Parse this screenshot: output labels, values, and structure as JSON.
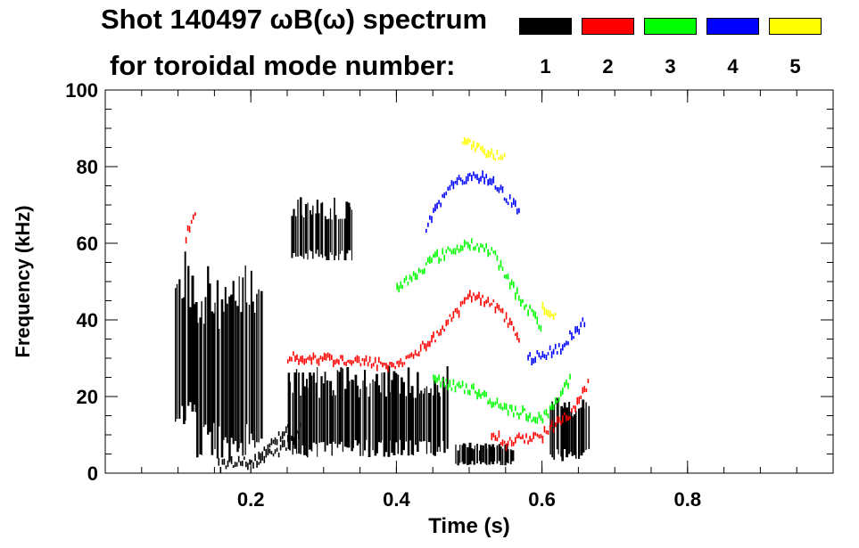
{
  "chart_data": {
    "type": "heatmap",
    "title": "Shot 140497 ωB(ω) spectrum",
    "subtitle": "for toroidal mode number:",
    "xlabel": "Time (s)",
    "ylabel": "Frequency (kHz)",
    "xlim": [
      0.0,
      1.0
    ],
    "ylim": [
      0,
      100
    ],
    "x_ticks": [
      "0.2",
      "0.4",
      "0.6",
      "0.8"
    ],
    "y_ticks": [
      "0",
      "20",
      "40",
      "60",
      "80",
      "100"
    ],
    "legend_position": "top-right",
    "legend": [
      {
        "n": "1",
        "color": "#000000"
      },
      {
        "n": "2",
        "color": "#ff0000"
      },
      {
        "n": "3",
        "color": "#00ff00"
      },
      {
        "n": "4",
        "color": "#0000ff"
      },
      {
        "n": "5",
        "color": "#ffff00"
      }
    ],
    "series": [
      {
        "mode": "1",
        "color": "#000000",
        "regions": [
          {
            "t": [
              0.095,
              0.125
            ],
            "f": [
              12,
              58
            ]
          },
          {
            "t": [
              0.125,
              0.215
            ],
            "f": [
              3,
              55
            ]
          },
          {
            "t": [
              0.25,
              0.47
            ],
            "f": [
              4,
              28
            ]
          },
          {
            "t": [
              0.255,
              0.34
            ],
            "f": [
              55,
              72
            ]
          },
          {
            "t": [
              0.48,
              0.56
            ],
            "f": [
              2,
              8
            ]
          },
          {
            "t": [
              0.61,
              0.665
            ],
            "f": [
              3,
              20
            ]
          }
        ],
        "tracks": [
          {
            "t": [
              0.155,
              0.2,
              0.24,
              0.27
            ],
            "f": [
              2,
              3,
              6,
              12
            ]
          },
          {
            "t": [
              0.21,
              0.24,
              0.255
            ],
            "f": [
              4,
              10,
              14
            ]
          }
        ]
      },
      {
        "mode": "2",
        "color": "#ff0000",
        "tracks": [
          {
            "t": [
              0.25,
              0.3,
              0.35,
              0.4,
              0.45,
              0.5,
              0.53,
              0.55,
              0.57
            ],
            "f": [
              30,
              30,
              29,
              28,
              35,
              46,
              45,
              40,
              35
            ]
          },
          {
            "t": [
              0.53,
              0.55,
              0.6,
              0.64,
              0.665
            ],
            "f": [
              10,
              8,
              10,
              16,
              24
            ]
          },
          {
            "t": [
              0.11,
              0.125
            ],
            "f": [
              62,
              68
            ]
          }
        ]
      },
      {
        "mode": "3",
        "color": "#00ff00",
        "tracks": [
          {
            "t": [
              0.4,
              0.45,
              0.5,
              0.53,
              0.56,
              0.6
            ],
            "f": [
              48,
              56,
              60,
              58,
              48,
              38
            ]
          },
          {
            "t": [
              0.45,
              0.5,
              0.55,
              0.6,
              0.64
            ],
            "f": [
              24,
              22,
              17,
              14,
              25
            ]
          }
        ]
      },
      {
        "mode": "4",
        "color": "#0000ff",
        "tracks": [
          {
            "t": [
              0.44,
              0.47,
              0.5,
              0.53,
              0.57
            ],
            "f": [
              64,
              74,
              78,
              76,
              68
            ]
          },
          {
            "t": [
              0.58,
              0.62,
              0.66
            ],
            "f": [
              30,
              32,
              40
            ]
          }
        ]
      },
      {
        "mode": "5",
        "color": "#ffff00",
        "tracks": [
          {
            "t": [
              0.49,
              0.52,
              0.55
            ],
            "f": [
              87,
              84,
              82
            ]
          },
          {
            "t": [
              0.6,
              0.62
            ],
            "f": [
              44,
              40
            ]
          }
        ]
      }
    ]
  }
}
